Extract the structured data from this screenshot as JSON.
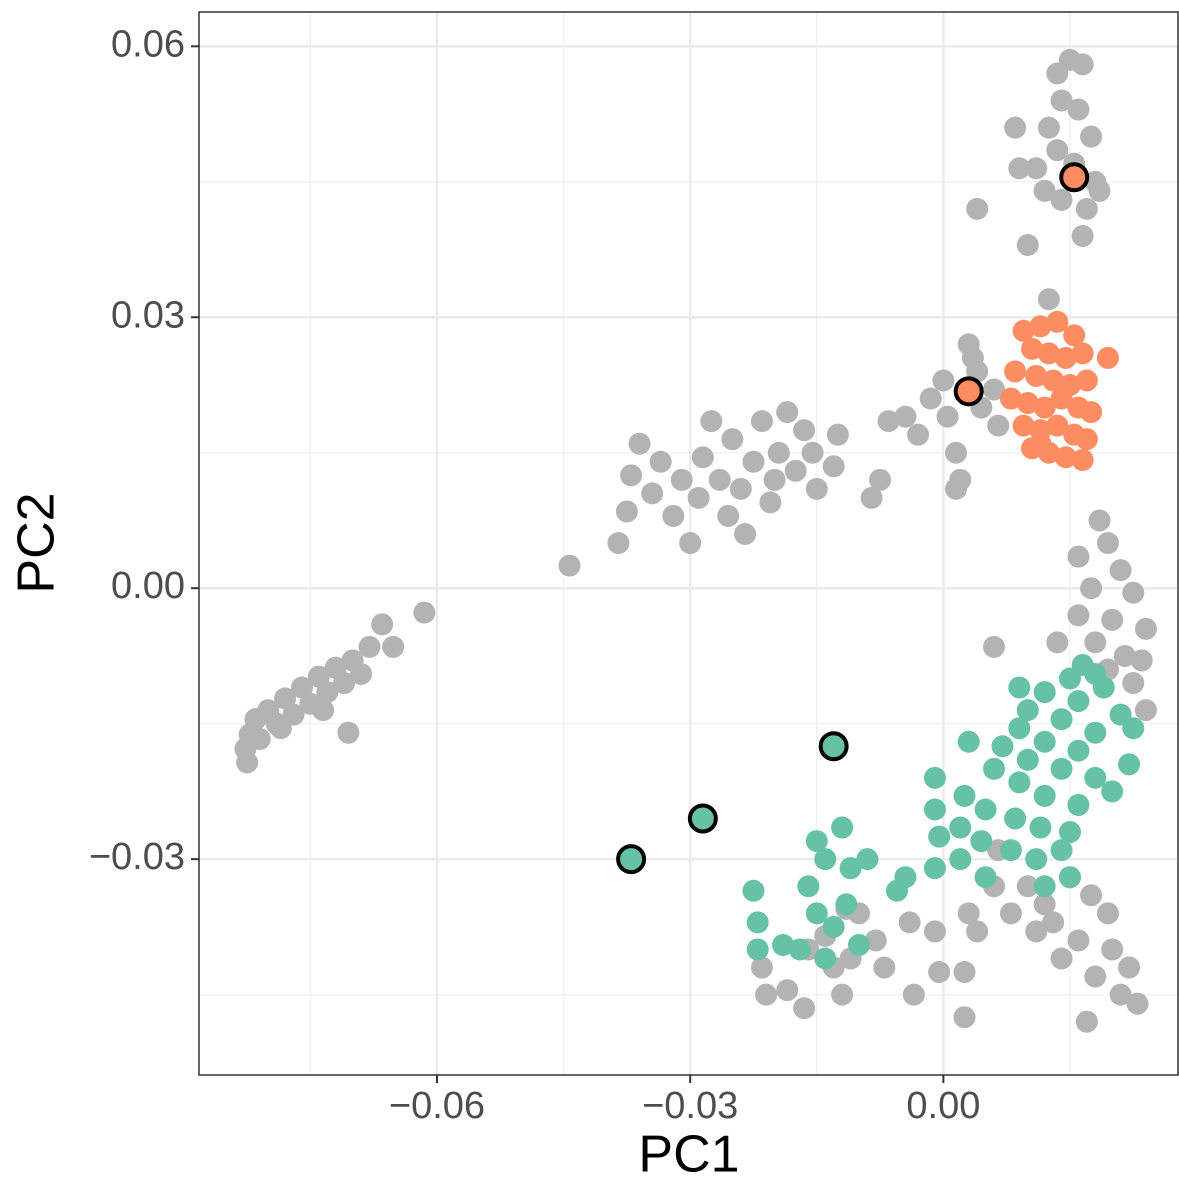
{
  "chart_data": {
    "type": "scatter",
    "x_label": "PC1",
    "y_label": "PC2",
    "xlim": [
      -0.0882,
      0.0278
    ],
    "ylim": [
      -0.0539,
      0.0638
    ],
    "xticks": [
      {
        "value": -0.06,
        "label": "−0.06"
      },
      {
        "value": -0.03,
        "label": "−0.03"
      },
      {
        "value": 0,
        "label": "0.00"
      }
    ],
    "yticks": [
      {
        "value": -0.03,
        "label": "−0.03"
      },
      {
        "value": 0,
        "label": "0.00"
      },
      0.03,
      0.06
    ],
    "grid": true,
    "series": [
      {
        "color": "#b3b3b3",
        "x": [
          -0.0825,
          -0.0827,
          -0.0822,
          -0.0815,
          -0.081,
          -0.08,
          -0.079,
          -0.078,
          -0.077,
          -0.076,
          -0.075,
          -0.074,
          -0.073,
          -0.072,
          -0.071,
          -0.07,
          -0.069,
          -0.0705,
          -0.068,
          -0.0665,
          -0.0652,
          -0.0615,
          -0.0735,
          -0.0785,
          -0.0443,
          -0.0385,
          -0.0375,
          -0.037,
          -0.036,
          -0.0345,
          -0.0335,
          -0.032,
          -0.031,
          -0.03,
          -0.029,
          -0.0285,
          -0.0275,
          -0.0265,
          -0.0255,
          -0.025,
          -0.024,
          -0.0235,
          -0.0225,
          -0.0215,
          -0.0205,
          -0.0195,
          -0.0185,
          -0.0175,
          -0.0165,
          -0.0155,
          -0.0125,
          -0.013,
          -0.0075,
          -0.0085,
          -0.015,
          -0.02,
          -0.0065,
          -0.0045,
          -0.003,
          -0.0015,
          0,
          0.0005,
          0.0015,
          0.002,
          0.003,
          0.004,
          0.0045,
          0.006,
          0.0065,
          0.0015,
          0.0035,
          0.0135,
          0.015,
          0.0165,
          0.014,
          0.016,
          0.0125,
          0.0175,
          0.0135,
          0.0155,
          0.018,
          0.011,
          0.0085,
          0.009,
          0.012,
          0.017,
          0.014,
          0.004,
          0.01,
          0.0165,
          0.0185,
          0.0125,
          0.0185,
          0.0195,
          0.016,
          0.021,
          0.0175,
          0.0225,
          0.016,
          0.02,
          0.024,
          0.018,
          0.0215,
          0.0235,
          0.0195,
          0.0135,
          0.006,
          0.0225,
          0.024,
          0.015,
          0.0175,
          0.0195,
          0.013,
          0.016,
          0.02,
          0.022,
          0.018,
          0.014,
          0.011,
          0.008,
          0.006,
          0.01,
          0.021,
          0.017,
          0.023,
          0.012,
          0.0065,
          0.004,
          -0.0215,
          -0.021,
          -0.0185,
          -0.0165,
          -0.016,
          -0.014,
          -0.013,
          -0.012,
          -0.011,
          -0.01,
          -0.008,
          -0.007,
          -0.004,
          -0.001,
          0.003,
          -0.0005,
          -0.0035,
          0.0025,
          0.0025,
          -0.0115
        ],
        "values": [
          -0.0193,
          -0.0178,
          -0.0162,
          -0.0145,
          -0.0167,
          -0.0135,
          -0.015,
          -0.0122,
          -0.014,
          -0.011,
          -0.0128,
          -0.0098,
          -0.0115,
          -0.0088,
          -0.0105,
          -0.008,
          -0.0095,
          -0.016,
          -0.0065,
          -0.004,
          -0.0065,
          -0.0027,
          -0.0135,
          -0.0155,
          0.0025,
          0.005,
          0.0085,
          0.0125,
          0.016,
          0.0105,
          0.014,
          0.008,
          0.012,
          0.005,
          0.01,
          0.0145,
          0.0185,
          0.012,
          0.008,
          0.0165,
          0.011,
          0.006,
          0.014,
          0.0185,
          0.0095,
          0.015,
          0.0195,
          0.013,
          0.0175,
          0.015,
          0.017,
          0.0135,
          0.012,
          0.01,
          0.011,
          0.012,
          0.0185,
          0.019,
          0.017,
          0.021,
          0.023,
          0.019,
          0.015,
          0.012,
          0.027,
          0.024,
          0.02,
          0.022,
          0.018,
          0.011,
          0.0255,
          0.057,
          0.0585,
          0.058,
          0.054,
          0.053,
          0.051,
          0.05,
          0.0485,
          0.047,
          0.045,
          0.0465,
          0.051,
          0.0465,
          0.044,
          0.042,
          0.043,
          0.042,
          0.038,
          0.039,
          0.044,
          0.032,
          0.0075,
          0.005,
          0.0035,
          0.002,
          0,
          -0.0005,
          -0.003,
          -0.0035,
          -0.0045,
          -0.006,
          -0.0075,
          -0.008,
          -0.009,
          -0.006,
          -0.0065,
          -0.0105,
          -0.0135,
          -0.032,
          -0.034,
          -0.036,
          -0.037,
          -0.039,
          -0.04,
          -0.042,
          -0.043,
          -0.041,
          -0.038,
          -0.036,
          -0.033,
          -0.033,
          -0.045,
          -0.048,
          -0.046,
          -0.035,
          -0.029,
          -0.038,
          -0.042,
          -0.045,
          -0.0445,
          -0.0465,
          -0.04,
          -0.0385,
          -0.042,
          -0.045,
          -0.041,
          -0.036,
          -0.039,
          -0.042,
          -0.037,
          -0.038,
          -0.036,
          -0.0425,
          -0.045,
          -0.0475,
          -0.0425,
          -0.0355
        ]
      },
      {
        "color": "#fc8d62",
        "x": [
          0.0095,
          0.0115,
          0.0135,
          0.0155,
          0.0105,
          0.0125,
          0.0145,
          0.0165,
          0.0195,
          0.0085,
          0.011,
          0.013,
          0.015,
          0.017,
          0.008,
          0.01,
          0.012,
          0.014,
          0.016,
          0.0175,
          0.0095,
          0.0115,
          0.0135,
          0.0155,
          0.017,
          0.0105,
          0.0125,
          0.0145,
          0.0165,
          0.0115
        ],
        "values": [
          0.0285,
          0.029,
          0.0295,
          0.028,
          0.0265,
          0.026,
          0.0255,
          0.026,
          0.0255,
          0.024,
          0.0235,
          0.023,
          0.0225,
          0.023,
          0.021,
          0.0205,
          0.02,
          0.021,
          0.02,
          0.0195,
          0.018,
          0.0175,
          0.018,
          0.017,
          0.0165,
          0.0155,
          0.015,
          0.0145,
          0.0142,
          0.016
        ]
      },
      {
        "color": "#66c2a5",
        "x": [
          0.0165,
          0.018,
          0.015,
          0.019,
          0.012,
          0.016,
          0.021,
          0.01,
          0.014,
          0.018,
          0.009,
          0.012,
          0.016,
          0.022,
          0.007,
          0.01,
          0.014,
          0.018,
          0.003,
          0.006,
          0.009,
          0.012,
          0.016,
          0.02,
          -0.001,
          0.0025,
          0.005,
          0.0085,
          0.0115,
          0.015,
          -0.001,
          0.002,
          0.0045,
          0.008,
          0.011,
          0.014,
          -0.0005,
          0.002,
          0.005,
          0.012,
          0.015,
          -0.0045,
          -0.001,
          -0.0055,
          -0.009,
          -0.011,
          -0.012,
          -0.015,
          -0.014,
          -0.016,
          -0.015,
          -0.014,
          -0.017,
          -0.019,
          -0.0225,
          -0.022,
          -0.022,
          -0.013,
          -0.01,
          -0.0115,
          0.009,
          0.0225
        ],
        "values": [
          -0.0085,
          -0.0095,
          -0.01,
          -0.011,
          -0.0115,
          -0.0125,
          -0.014,
          -0.0135,
          -0.0145,
          -0.016,
          -0.0155,
          -0.017,
          -0.018,
          -0.0195,
          -0.0175,
          -0.019,
          -0.02,
          -0.021,
          -0.017,
          -0.02,
          -0.0215,
          -0.023,
          -0.024,
          -0.0225,
          -0.021,
          -0.023,
          -0.0245,
          -0.0255,
          -0.0265,
          -0.027,
          -0.0245,
          -0.0265,
          -0.028,
          -0.029,
          -0.03,
          -0.029,
          -0.0275,
          -0.03,
          -0.032,
          -0.033,
          -0.032,
          -0.032,
          -0.031,
          -0.0335,
          -0.03,
          -0.031,
          -0.0265,
          -0.028,
          -0.03,
          -0.033,
          -0.036,
          -0.041,
          -0.04,
          -0.0395,
          -0.0335,
          -0.037,
          -0.04,
          -0.0375,
          -0.0395,
          -0.035,
          -0.011,
          -0.0155
        ]
      },
      {
        "color": "#fc8d62",
        "outline": "#000000",
        "x": [
          0.0155,
          0.003
        ],
        "values": [
          0.0455,
          0.0218
        ]
      },
      {
        "color": "#66c2a5",
        "outline": "#000000",
        "x": [
          -0.013,
          -0.0285,
          -0.037
        ],
        "values": [
          -0.0175,
          -0.0255,
          -0.03
        ]
      }
    ]
  }
}
